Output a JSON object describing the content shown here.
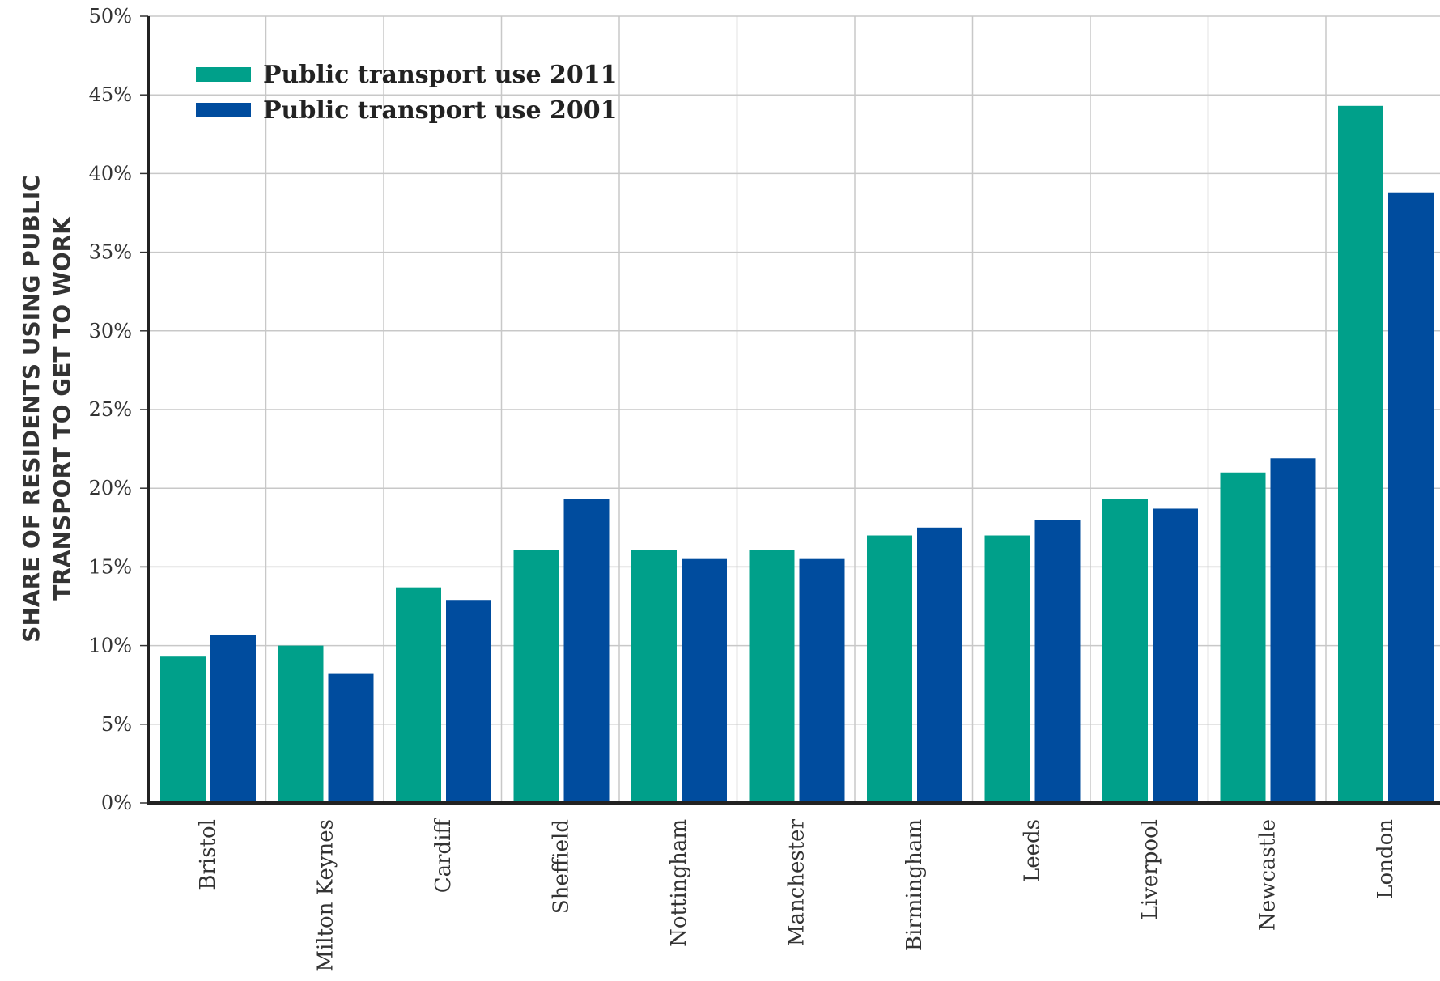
{
  "chart_data": {
    "type": "bar",
    "title": "",
    "xlabel": "",
    "ylabel_lines": [
      "SHARE OF RESIDENTS USING PUBLIC",
      "TRANSPORT TO GET TO WORK"
    ],
    "ylim": [
      0,
      50
    ],
    "y_ticks": [
      0,
      5,
      10,
      15,
      20,
      25,
      30,
      35,
      40,
      45,
      50
    ],
    "y_tick_labels": [
      "0%",
      "5%",
      "10%",
      "15%",
      "20%",
      "25%",
      "30%",
      "35%",
      "40%",
      "45%",
      "50%"
    ],
    "grid": true,
    "legend_position": "top-left",
    "categories": [
      "Bristol",
      "Milton Keynes",
      "Cardiff",
      "Sheffield",
      "Nottingham",
      "Manchester",
      "Birmingham",
      "Leeds",
      "Liverpool",
      "Newcastle",
      "London"
    ],
    "series": [
      {
        "name": "Public transport use 2011",
        "color": "#00A08A",
        "values": [
          9.3,
          10.0,
          13.7,
          16.1,
          16.1,
          16.1,
          17.0,
          17.0,
          19.3,
          21.0,
          44.3
        ]
      },
      {
        "name": "Public transport use 2001",
        "color": "#004C9E",
        "values": [
          10.7,
          8.2,
          12.9,
          19.3,
          15.5,
          15.5,
          17.5,
          18.0,
          18.7,
          21.9,
          38.8
        ]
      }
    ]
  }
}
